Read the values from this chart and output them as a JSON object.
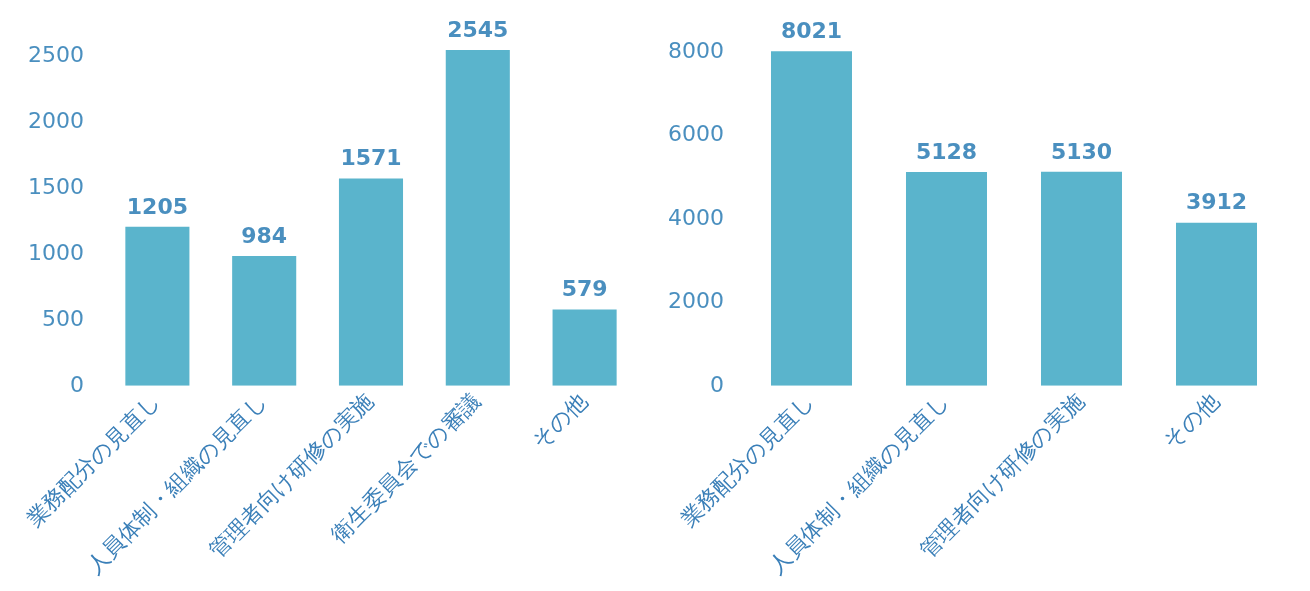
{
  "chart_data": [
    {
      "type": "bar",
      "categories": [
        "業務配分の見直し",
        "人員体制・組織の見直し",
        "管理者向け研修の実施",
        "衛生委員会での審議",
        "その他"
      ],
      "values": [
        1205,
        984,
        1571,
        2545,
        579
      ],
      "color": "#5ab4cc",
      "ylim": [
        0,
        2560
      ],
      "yticks": [
        0,
        500,
        1000,
        1500,
        2000,
        2500
      ],
      "grid": false,
      "legend": false,
      "data_labels": true
    },
    {
      "type": "bar",
      "categories": [
        "業務配分の見直し",
        "人員体制・組織の見直し",
        "管理者向け研修の実施",
        "その他"
      ],
      "values": [
        8021,
        5128,
        5130,
        3912
      ],
      "color": "#5ab4cc",
      "ylim": [
        0,
        8100
      ],
      "yticks": [
        0,
        2000,
        4000,
        6000,
        8000
      ],
      "grid": false,
      "legend": false,
      "data_labels": true
    }
  ]
}
